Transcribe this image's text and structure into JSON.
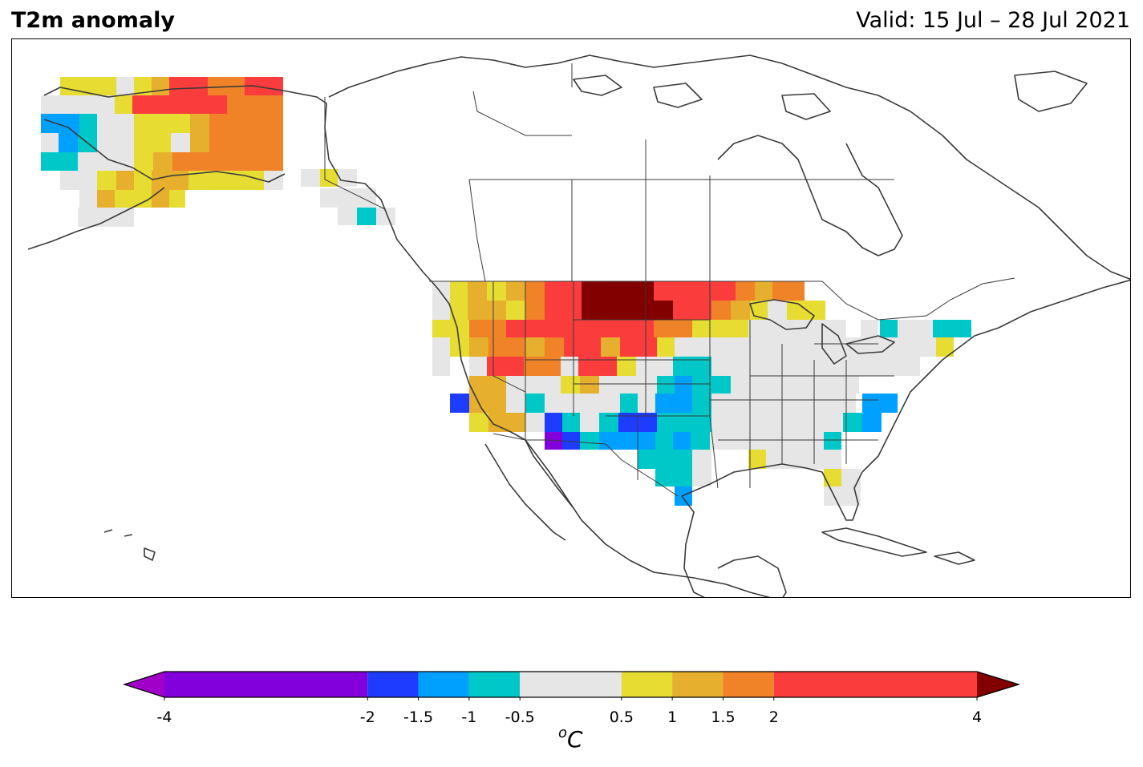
{
  "header": {
    "title": "T2m anomaly",
    "valid": "Valid: 15 Jul – 28 Jul 2021"
  },
  "colorbar": {
    "units_base": "C",
    "units_superscript": "o",
    "boundaries": [
      -4,
      -2,
      -1.5,
      -1,
      -0.5,
      0.5,
      1,
      1.5,
      2,
      4
    ],
    "tick_labels": [
      "-4",
      "-2",
      "-1.5",
      "-1",
      "-0.5",
      "0.5",
      "1",
      "1.5",
      "2",
      "4"
    ],
    "bin_colors": [
      "#8200dc",
      "#1e3cff",
      "#00a0ff",
      "#00c8c8",
      "#e6e6e6",
      "#e6dc32",
      "#e6af2d",
      "#f08228",
      "#fa3c3c"
    ],
    "under_color": "#a000c8",
    "over_color": "#820000"
  },
  "map": {
    "background": "#ffffff",
    "coast_color": "#3a3a3a"
  }
}
